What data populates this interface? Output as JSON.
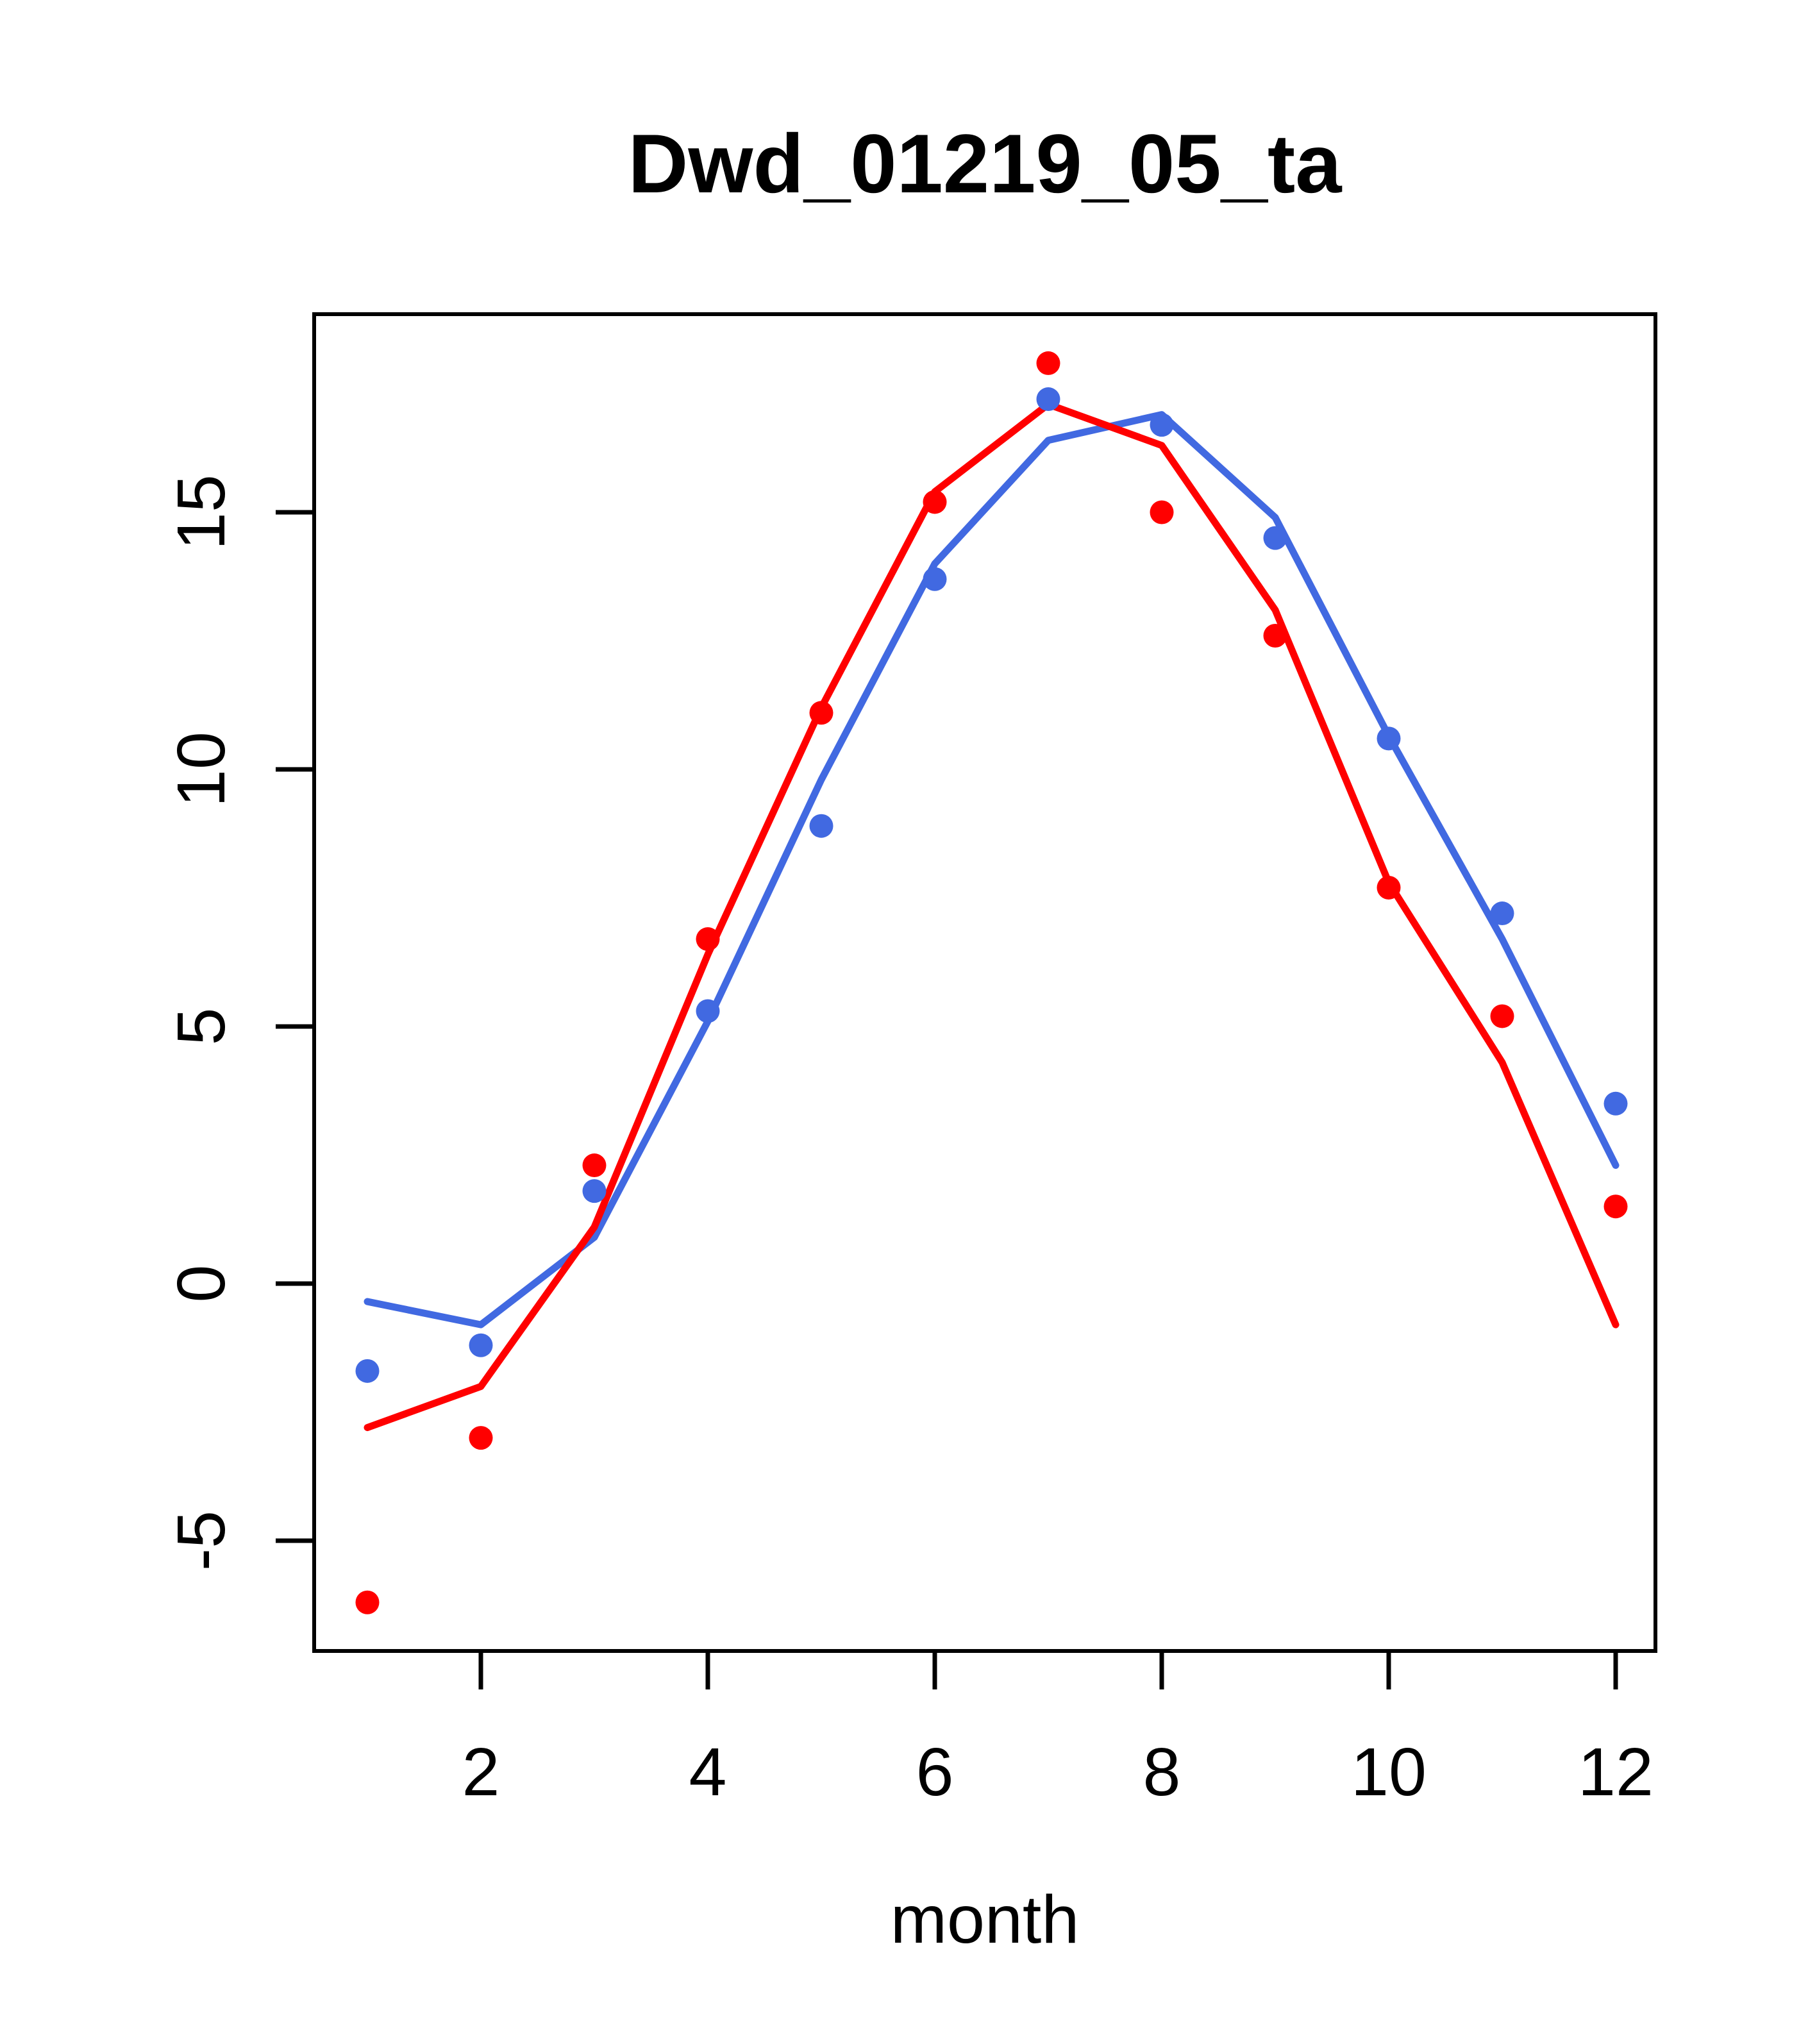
{
  "title": "Dwd_01219_05_ta",
  "colors": {
    "red": "#FF0000",
    "blue": "#4169E1",
    "axis": "#000000",
    "background": "#FFFFFF"
  },
  "chart_data": {
    "type": "line",
    "title": "Dwd_01219_05_ta",
    "xlabel": "month",
    "ylabel": "",
    "x": [
      1,
      2,
      3,
      4,
      5,
      6,
      7,
      8,
      9,
      10,
      11,
      12
    ],
    "x_ticks": [
      2,
      4,
      6,
      8,
      10,
      12
    ],
    "y_ticks": [
      -5,
      0,
      5,
      10,
      15
    ],
    "xlim": [
      0.53,
      12.47
    ],
    "ylim": [
      -7.15,
      18.85
    ],
    "grid": false,
    "legend_position": "none",
    "series": [
      {
        "name": "blue-line",
        "type": "line",
        "color": "#4169E1",
        "values": [
          -0.35,
          -0.8,
          0.9,
          5.1,
          9.8,
          14.0,
          16.4,
          16.9,
          14.9,
          10.65,
          6.7,
          2.3
        ]
      },
      {
        "name": "red-line",
        "type": "line",
        "color": "#FF0000",
        "values": [
          -2.8,
          -2.0,
          1.1,
          6.4,
          11.2,
          15.4,
          17.1,
          16.3,
          13.1,
          7.8,
          4.3,
          -0.8
        ]
      },
      {
        "name": "blue-points",
        "type": "scatter",
        "color": "#4169E1",
        "values": [
          -1.7,
          -1.2,
          1.8,
          5.3,
          8.9,
          13.7,
          17.2,
          16.7,
          14.5,
          10.6,
          7.2,
          3.5
        ]
      },
      {
        "name": "red-points",
        "type": "scatter",
        "color": "#FF0000",
        "values": [
          -6.2,
          -3.0,
          2.3,
          6.7,
          11.1,
          15.2,
          17.9,
          15.0,
          12.6,
          7.7,
          5.2,
          1.5
        ]
      }
    ]
  }
}
